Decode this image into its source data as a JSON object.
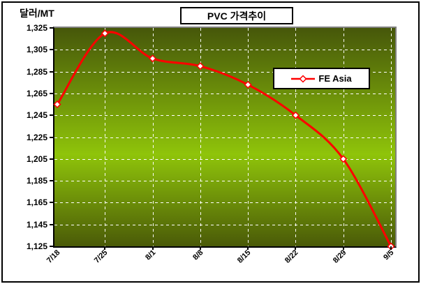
{
  "chart_data": {
    "type": "line",
    "smooth": true,
    "title": "PVC 가격추이",
    "ylabel": "달러/MT",
    "xlabel": "",
    "categories": [
      "7/18",
      "7/25",
      "8/1",
      "8/8",
      "8/15",
      "8/22",
      "8/29",
      "9/5"
    ],
    "series": [
      {
        "name": "FE Asia",
        "color": "#ff0000",
        "marker": "diamond",
        "marker_fill": "#ffffff",
        "values": [
          1255,
          1320,
          1297,
          1290,
          1273,
          1245,
          1205,
          1125
        ]
      }
    ],
    "ylim": [
      1125,
      1325
    ],
    "ytick_step": 20,
    "yticks": [
      "1,325",
      "1,305",
      "1,285",
      "1,265",
      "1,245",
      "1,225",
      "1,205",
      "1,185",
      "1,165",
      "1,145",
      "1,125"
    ],
    "grid": true,
    "gridline_style": "dashed",
    "legend_position": "inside-right",
    "colors": {
      "plot_gradient_top": "#46570a",
      "plot_gradient_mid": "#8fc40a",
      "plot_gradient_bottom": "#4a5a08",
      "gridline": "#ffffff",
      "plot_border_highlight": "#808080",
      "axis": "#000000",
      "frame_border": "#000000",
      "background": "#ffffff"
    }
  }
}
